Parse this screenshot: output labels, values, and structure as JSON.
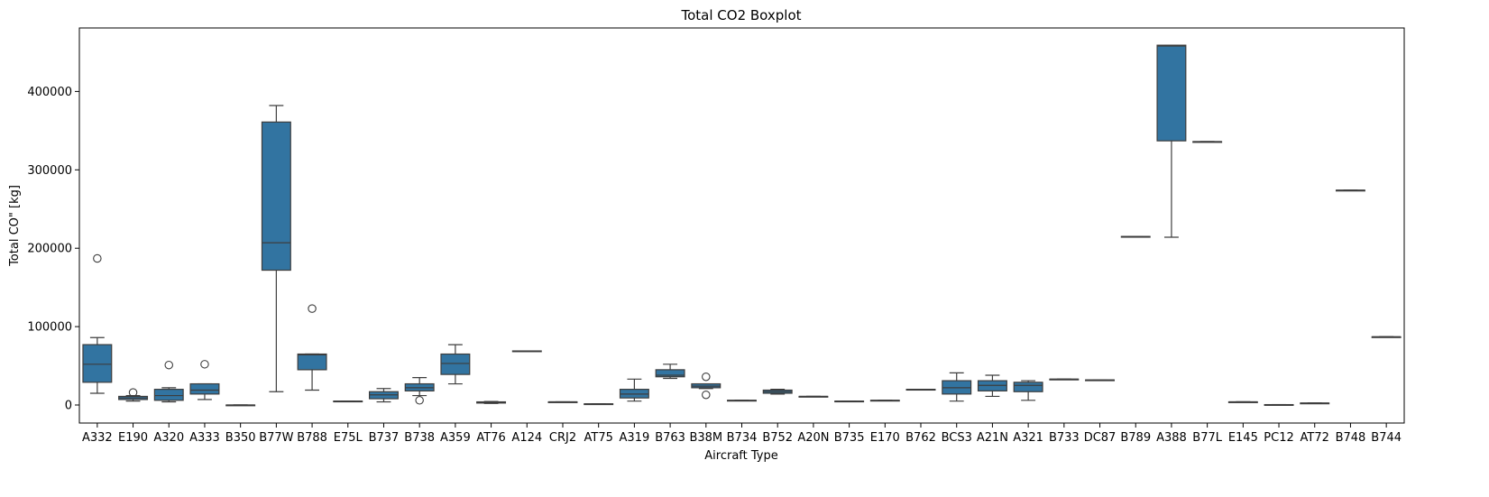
{
  "chart_data": {
    "type": "boxplot",
    "title": "Total CO2 Boxplot",
    "xlabel": "Aircraft Type",
    "ylabel": "Total CO\" [kg]",
    "ylim": [
      -23000,
      481000
    ],
    "yticks": [
      0,
      100000,
      200000,
      300000,
      400000
    ],
    "ytick_labels": [
      "0",
      "100000",
      "200000",
      "300000",
      "400000"
    ],
    "grid": false,
    "legend": "none",
    "box_color": "#3274a1",
    "line_color": "#3d3d3d",
    "categories": [
      "A332",
      "E190",
      "A320",
      "A333",
      "B350",
      "B77W",
      "B788",
      "E75L",
      "B737",
      "B738",
      "A359",
      "AT76",
      "A124",
      "CRJ2",
      "AT75",
      "A319",
      "B763",
      "B38M",
      "B734",
      "B752",
      "A20N",
      "B735",
      "E170",
      "B762",
      "BCS3",
      "A21N",
      "A321",
      "B733",
      "DC87",
      "B789",
      "A388",
      "B77L",
      "E145",
      "PC12",
      "AT72",
      "B748",
      "B744"
    ],
    "boxes": [
      {
        "whislo": 15000,
        "q1": 29000,
        "med": 52000,
        "q3": 77000,
        "whishi": 86000,
        "fliers": [
          187000
        ]
      },
      {
        "whislo": 5000,
        "q1": 7000,
        "med": 9000,
        "q3": 11000,
        "whishi": 12000,
        "fliers": [
          16000
        ]
      },
      {
        "whislo": 4000,
        "q1": 6000,
        "med": 12000,
        "q3": 20000,
        "whishi": 22000,
        "fliers": [
          51000
        ]
      },
      {
        "whislo": 7000,
        "q1": 14000,
        "med": 19000,
        "q3": 27000,
        "whishi": 27000,
        "fliers": [
          52000
        ]
      },
      {
        "whislo": 0,
        "q1": 0,
        "med": 0,
        "q3": 0,
        "whishi": 0,
        "fliers": []
      },
      {
        "whislo": 17000,
        "q1": 172000,
        "med": 207000,
        "q3": 361000,
        "whishi": 382000,
        "fliers": []
      },
      {
        "whislo": 19000,
        "q1": 45000,
        "med": 64000,
        "q3": 65000,
        "whishi": 65000,
        "fliers": [
          123000
        ]
      },
      {
        "whislo": 5000,
        "q1": 5000,
        "med": 5000,
        "q3": 5000,
        "whishi": 5000,
        "fliers": []
      },
      {
        "whislo": 4000,
        "q1": 8000,
        "med": 13000,
        "q3": 17000,
        "whishi": 21000,
        "fliers": []
      },
      {
        "whislo": 12000,
        "q1": 18000,
        "med": 22000,
        "q3": 27000,
        "whishi": 35000,
        "fliers": [
          6000
        ]
      },
      {
        "whislo": 27000,
        "q1": 39000,
        "med": 53000,
        "q3": 65000,
        "whishi": 77000,
        "fliers": []
      },
      {
        "whislo": 2000,
        "q1": 2500,
        "med": 3500,
        "q3": 4000,
        "whishi": 4500,
        "fliers": []
      },
      {
        "whislo": 69000,
        "q1": 69000,
        "med": 69000,
        "q3": 69000,
        "whishi": 69000,
        "fliers": []
      },
      {
        "whislo": 4000,
        "q1": 4000,
        "med": 4000,
        "q3": 4000,
        "whishi": 4000,
        "fliers": []
      },
      {
        "whislo": 1500,
        "q1": 1500,
        "med": 1500,
        "q3": 1500,
        "whishi": 1500,
        "fliers": []
      },
      {
        "whislo": 5000,
        "q1": 9000,
        "med": 14000,
        "q3": 20000,
        "whishi": 33000,
        "fliers": []
      },
      {
        "whislo": 34000,
        "q1": 36000,
        "med": 38000,
        "q3": 45000,
        "whishi": 52000,
        "fliers": []
      },
      {
        "whislo": 21000,
        "q1": 22000,
        "med": 24000,
        "q3": 27000,
        "whishi": 27000,
        "fliers": [
          36000,
          13000
        ]
      },
      {
        "whislo": 6000,
        "q1": 6000,
        "med": 6000,
        "q3": 6000,
        "whishi": 6000,
        "fliers": []
      },
      {
        "whislo": 14000,
        "q1": 15000,
        "med": 17000,
        "q3": 19000,
        "whishi": 20000,
        "fliers": []
      },
      {
        "whislo": 11000,
        "q1": 11000,
        "med": 11000,
        "q3": 11000,
        "whishi": 11000,
        "fliers": []
      },
      {
        "whislo": 5000,
        "q1": 5000,
        "med": 5000,
        "q3": 5000,
        "whishi": 5000,
        "fliers": []
      },
      {
        "whislo": 6000,
        "q1": 6000,
        "med": 6000,
        "q3": 6000,
        "whishi": 6000,
        "fliers": []
      },
      {
        "whislo": 20000,
        "q1": 20000,
        "med": 20000,
        "q3": 20000,
        "whishi": 20000,
        "fliers": []
      },
      {
        "whislo": 5000,
        "q1": 14000,
        "med": 22000,
        "q3": 31000,
        "whishi": 41000,
        "fliers": []
      },
      {
        "whislo": 11000,
        "q1": 18000,
        "med": 25000,
        "q3": 31000,
        "whishi": 38000,
        "fliers": []
      },
      {
        "whislo": 6000,
        "q1": 17000,
        "med": 25000,
        "q3": 29000,
        "whishi": 31000,
        "fliers": []
      },
      {
        "whislo": 33000,
        "q1": 33000,
        "med": 33000,
        "q3": 33000,
        "whishi": 33000,
        "fliers": []
      },
      {
        "whislo": 32000,
        "q1": 32000,
        "med": 32000,
        "q3": 32000,
        "whishi": 32000,
        "fliers": []
      },
      {
        "whislo": 215000,
        "q1": 215000,
        "med": 215000,
        "q3": 215000,
        "whishi": 215000,
        "fliers": []
      },
      {
        "whislo": 214000,
        "q1": 337000,
        "med": 458000,
        "q3": 459000,
        "whishi": 459000,
        "fliers": []
      },
      {
        "whislo": 336000,
        "q1": 336000,
        "med": 336000,
        "q3": 336000,
        "whishi": 336000,
        "fliers": []
      },
      {
        "whislo": 4000,
        "q1": 4000,
        "med": 4000,
        "q3": 4000,
        "whishi": 4000,
        "fliers": []
      },
      {
        "whislo": 500,
        "q1": 500,
        "med": 500,
        "q3": 500,
        "whishi": 500,
        "fliers": []
      },
      {
        "whislo": 2500,
        "q1": 2500,
        "med": 2500,
        "q3": 2500,
        "whishi": 2500,
        "fliers": []
      },
      {
        "whislo": 274000,
        "q1": 274000,
        "med": 274000,
        "q3": 274000,
        "whishi": 274000,
        "fliers": []
      },
      {
        "whislo": 87000,
        "q1": 87000,
        "med": 87000,
        "q3": 87000,
        "whishi": 87000,
        "fliers": []
      }
    ]
  }
}
